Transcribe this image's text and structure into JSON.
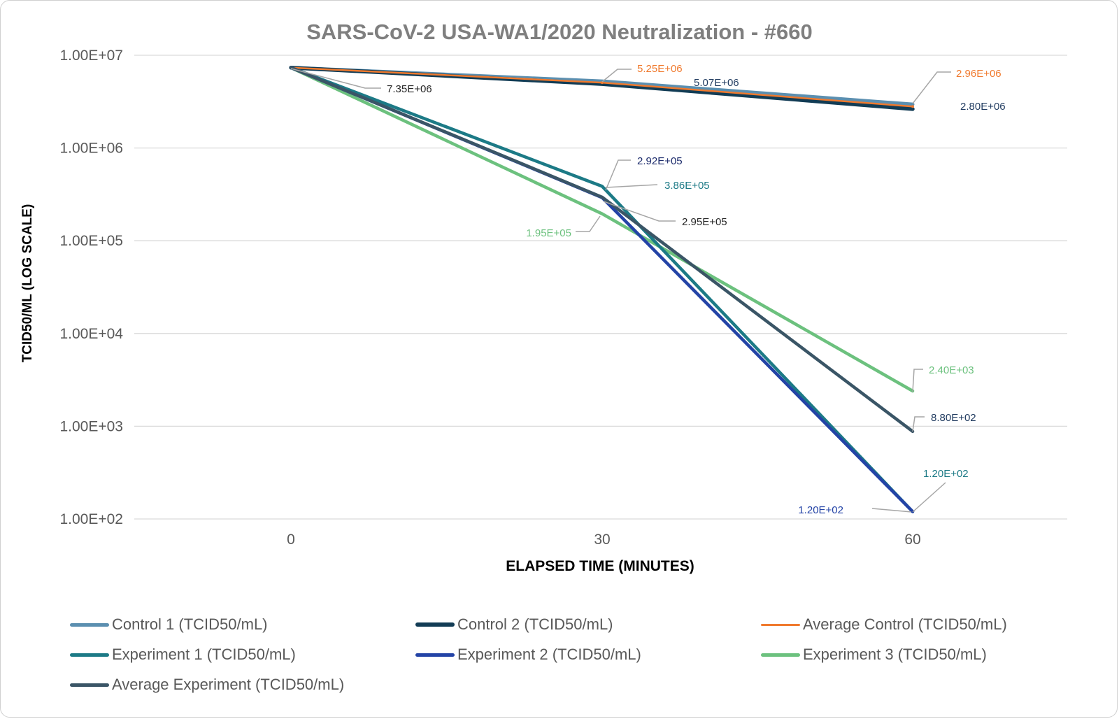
{
  "chart_data": {
    "type": "line",
    "title": "SARS-CoV-2 USA-WA1/2020 Neutralization - #660",
    "xlabel": "ELAPSED TIME (MINUTES)",
    "ylabel": "TCID50/ML (LOG SCALE)",
    "y_scale": "log",
    "ylim": [
      100,
      10000000
    ],
    "y_ticks": [
      100,
      1000,
      10000,
      100000,
      1000000,
      10000000
    ],
    "y_tick_labels": [
      "1.00E+02",
      "1.00E+03",
      "1.00E+04",
      "1.00E+05",
      "1.00E+06",
      "1.00E+07"
    ],
    "x": [
      0,
      30,
      60
    ],
    "x_tick_labels": [
      "0",
      "30",
      "60"
    ],
    "grid": true,
    "legend_position": "bottom",
    "series": [
      {
        "name": "Control 1 (TCID50/mL)",
        "color": "#5B8FB0",
        "values": [
          7350000,
          5250000,
          2960000
        ]
      },
      {
        "name": "Control 2 (TCID50/mL)",
        "color": "#123C55",
        "values": [
          7350000,
          4900000,
          2630000
        ]
      },
      {
        "name": "Average Control (TCID50/mL)",
        "color": "#F07A2E",
        "values": [
          7350000,
          5070000,
          2800000
        ]
      },
      {
        "name": "Experiment 1 (TCID50/mL)",
        "color": "#1C7A86",
        "values": [
          7350000,
          386000,
          120
        ]
      },
      {
        "name": "Experiment 2 (TCID50/mL)",
        "color": "#2343A6",
        "values": [
          7350000,
          292000,
          120
        ]
      },
      {
        "name": "Experiment 3 (TCID50/mL)",
        "color": "#6CC17E",
        "values": [
          7350000,
          195000,
          2400
        ]
      },
      {
        "name": "Average Experiment (TCID50/mL)",
        "color": "#3A5566",
        "values": [
          7350000,
          295000,
          880
        ]
      }
    ],
    "annotations": [
      {
        "text": "7.35E+06",
        "color": "#262626"
      },
      {
        "text": "5.25E+06",
        "color": "#F07A2E"
      },
      {
        "text": "5.07E+06",
        "color": "#1F3A5F"
      },
      {
        "text": "2.96E+06",
        "color": "#F07A2E"
      },
      {
        "text": "2.80E+06",
        "color": "#1F3A5F"
      },
      {
        "text": "2.92E+05",
        "color": "#1B2A6B"
      },
      {
        "text": "3.86E+05",
        "color": "#1C7A86"
      },
      {
        "text": "2.95E+05",
        "color": "#262626"
      },
      {
        "text": "1.95E+05",
        "color": "#6CC17E"
      },
      {
        "text": "2.40E+03",
        "color": "#6CC17E"
      },
      {
        "text": "8.80E+02",
        "color": "#1F3A5F"
      },
      {
        "text": "1.20E+02",
        "color": "#1C7A86"
      },
      {
        "text": "1.20E+02",
        "color": "#2343A6"
      }
    ]
  }
}
